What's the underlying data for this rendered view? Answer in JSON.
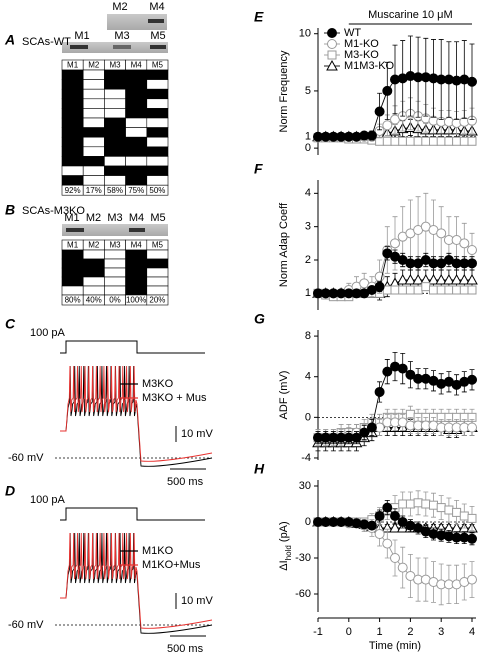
{
  "panels": {
    "A": {
      "letter": "A",
      "title": "SCAs-WT",
      "gel_top": [
        "M2",
        "M4"
      ],
      "gel_bottom": [
        "M1",
        "M3",
        "M5"
      ],
      "header": [
        "M1",
        "M2",
        "M3",
        "M4",
        "M5"
      ],
      "cells": [
        [
          1,
          0,
          1,
          1,
          1
        ],
        [
          1,
          0,
          1,
          1,
          0
        ],
        [
          1,
          0,
          0,
          1,
          1
        ],
        [
          1,
          0,
          0,
          1,
          0
        ],
        [
          1,
          0,
          0,
          1,
          1
        ],
        [
          1,
          0,
          1,
          0,
          0
        ],
        [
          1,
          1,
          1,
          0,
          1
        ],
        [
          1,
          0,
          1,
          1,
          0
        ],
        [
          1,
          0,
          1,
          1,
          1
        ],
        [
          1,
          1,
          0,
          0,
          0
        ],
        [
          0,
          0,
          1,
          1,
          1
        ],
        [
          1,
          0,
          0,
          1,
          0
        ]
      ],
      "percent": [
        "92%",
        "17%",
        "58%",
        "75%",
        "50%"
      ]
    },
    "B": {
      "letter": "B",
      "title": "SCAs-M3KO",
      "gel_labels": [
        "M1",
        "M2",
        "M3",
        "M4",
        "M5"
      ],
      "header": [
        "M1",
        "M2",
        "M3",
        "M4",
        "M5"
      ],
      "cells": [
        [
          1,
          0,
          0,
          1,
          0
        ],
        [
          1,
          1,
          0,
          1,
          1
        ],
        [
          1,
          1,
          0,
          1,
          0
        ],
        [
          1,
          0,
          0,
          1,
          0
        ],
        [
          0,
          0,
          0,
          1,
          0
        ]
      ],
      "percent": [
        "80%",
        "40%",
        "0%",
        "100%",
        "20%"
      ]
    },
    "C": {
      "letter": "C",
      "stim": "100 pA",
      "legend": [
        {
          "name": "M3KO",
          "color": "#000000"
        },
        {
          "name": "M3KO + Mus",
          "color": "#e8312f"
        }
      ],
      "vscale": "10 mV",
      "baseline": "-60 mV",
      "tscale": "500 ms"
    },
    "D": {
      "letter": "D",
      "stim": "100 pA",
      "legend": [
        {
          "name": "M1KO",
          "color": "#000000"
        },
        {
          "name": "M1KO+Mus",
          "color": "#e8312f"
        }
      ],
      "vscale": "10 mV",
      "baseline": "-60 mV",
      "tscale": "500 ms"
    }
  },
  "chart_data": [
    {
      "type": "line",
      "label": "E",
      "ylabel": "Norm Frequency",
      "annotation": {
        "text": "Muscarine 10 μM",
        "start": 0,
        "end": 4
      },
      "legend": "upper left",
      "xlim": [
        -1,
        4
      ],
      "ylim": [
        -0.6,
        10.5
      ],
      "yticks": [
        0,
        1,
        5,
        10
      ],
      "hline": 1,
      "x": [
        -1,
        -0.75,
        -0.5,
        -0.25,
        0,
        0.25,
        0.5,
        0.75,
        1,
        1.25,
        1.5,
        1.75,
        2,
        2.25,
        2.5,
        2.75,
        3,
        3.25,
        3.5,
        3.75,
        4
      ],
      "series": [
        {
          "name": "WT",
          "color": "#000000",
          "marker": "filled-circle",
          "values": [
            1,
            1,
            1,
            1,
            1,
            1,
            1.1,
            1.1,
            3.2,
            5.0,
            6.0,
            6.1,
            6.3,
            6.2,
            6.2,
            6.1,
            6.0,
            6.0,
            5.9,
            6.0,
            5.8
          ],
          "errors": [
            0.2,
            0.2,
            0.2,
            0.2,
            0.2,
            0.2,
            0.3,
            0.4,
            1.6,
            2.5,
            3.0,
            3.3,
            3.5,
            3.5,
            3.4,
            3.4,
            3.5,
            3.3,
            3.4,
            3.4,
            3.3
          ]
        },
        {
          "name": "M1-KO",
          "color": "#999999",
          "marker": "circle",
          "values": [
            1,
            1,
            1,
            1,
            1,
            1,
            1,
            1,
            1.5,
            2.0,
            2.5,
            2.8,
            3.0,
            2.8,
            2.6,
            2.4,
            2.3,
            2.3,
            2.2,
            2.3,
            2.4
          ],
          "errors": [
            0.2,
            0.2,
            0.2,
            0.2,
            0.2,
            0.2,
            0.2,
            0.3,
            0.6,
            0.9,
            1.2,
            1.3,
            1.4,
            1.3,
            1.2,
            1.1,
            1.0,
            1.0,
            1.0,
            1.0,
            1.1
          ]
        },
        {
          "name": "M3-KO",
          "color": "#999999",
          "marker": "square",
          "values": [
            0.9,
            0.9,
            0.9,
            0.9,
            0.8,
            0.8,
            0.8,
            0.7,
            0.6,
            0.6,
            0.6,
            0.6,
            0.6,
            0.6,
            0.6,
            0.6,
            0.6,
            0.6,
            0.6,
            0.6,
            0.6
          ],
          "errors": [
            0.2,
            0.2,
            0.2,
            0.2,
            0.2,
            0.2,
            0.2,
            0.2,
            0.2,
            0.2,
            0.2,
            0.2,
            0.2,
            0.2,
            0.2,
            0.2,
            0.2,
            0.2,
            0.2,
            0.2,
            0.2
          ]
        },
        {
          "name": "M1M3-KO",
          "color": "#000000",
          "marker": "triangle",
          "values": [
            1,
            1,
            1,
            1,
            1,
            1,
            1,
            1,
            1.2,
            1.3,
            1.5,
            1.7,
            1.8,
            1.7,
            1.6,
            1.6,
            1.6,
            1.6,
            1.6,
            1.5,
            1.5
          ],
          "errors": [
            0.2,
            0.2,
            0.2,
            0.2,
            0.2,
            0.2,
            0.2,
            0.2,
            0.4,
            0.5,
            0.6,
            0.7,
            0.7,
            0.7,
            0.6,
            0.6,
            0.6,
            0.6,
            0.6,
            0.6,
            0.6
          ]
        }
      ]
    },
    {
      "type": "line",
      "label": "F",
      "ylabel": "Norm Adap Coeff",
      "xlim": [
        -1,
        4
      ],
      "ylim": [
        0.5,
        4.4
      ],
      "yticks": [
        1,
        2,
        3,
        4
      ],
      "hline": 1,
      "x": [
        -1,
        -0.75,
        -0.5,
        -0.25,
        0,
        0.25,
        0.5,
        0.75,
        1,
        1.25,
        1.5,
        1.75,
        2,
        2.25,
        2.5,
        2.75,
        3,
        3.25,
        3.5,
        3.75,
        4
      ],
      "series": [
        {
          "name": "WT",
          "color": "#000000",
          "marker": "filled-circle",
          "values": [
            1,
            1,
            1,
            1,
            1,
            1,
            1,
            1.1,
            1.2,
            2.2,
            2.1,
            2.0,
            1.9,
            1.9,
            2.0,
            1.9,
            1.9,
            2.0,
            1.9,
            1.9,
            1.9
          ],
          "errors": [
            0.05,
            0.05,
            0.05,
            0.05,
            0.05,
            0.05,
            0.05,
            0.1,
            0.15,
            0.2,
            0.2,
            0.2,
            0.2,
            0.2,
            0.2,
            0.2,
            0.2,
            0.2,
            0.2,
            0.2,
            0.2
          ]
        },
        {
          "name": "M1-KO",
          "color": "#999999",
          "marker": "circle",
          "values": [
            1,
            1,
            1,
            1,
            1.1,
            1.2,
            1.3,
            1.2,
            1.5,
            2.3,
            2.5,
            2.7,
            2.8,
            2.9,
            3.0,
            2.9,
            2.8,
            2.6,
            2.6,
            2.5,
            2.3
          ],
          "errors": [
            0.05,
            0.05,
            0.05,
            0.1,
            0.2,
            0.3,
            0.3,
            0.3,
            0.5,
            0.7,
            0.8,
            0.9,
            1.0,
            1.0,
            1.0,
            0.9,
            0.8,
            0.7,
            0.7,
            0.6,
            0.5
          ]
        },
        {
          "name": "M3-KO",
          "color": "#999999",
          "marker": "square",
          "values": [
            1,
            0.95,
            0.9,
            0.9,
            0.9,
            1.0,
            1.0,
            1.0,
            1.0,
            1.1,
            1.1,
            1.1,
            1.1,
            1.1,
            1.2,
            1.1,
            1.1,
            1.1,
            1.1,
            1.1,
            1.1
          ],
          "errors": [
            0.1,
            0.1,
            0.1,
            0.1,
            0.1,
            0.1,
            0.1,
            0.1,
            0.1,
            0.1,
            0.1,
            0.1,
            0.1,
            0.1,
            0.1,
            0.1,
            0.1,
            0.1,
            0.1,
            0.1,
            0.1
          ]
        },
        {
          "name": "M1M3-KO",
          "color": "#000000",
          "marker": "triangle",
          "values": [
            1,
            1,
            1,
            1,
            1,
            1,
            1,
            1,
            1,
            1.2,
            1.3,
            1.4,
            1.4,
            1.4,
            1.4,
            1.4,
            1.4,
            1.4,
            1.4,
            1.4,
            1.4
          ],
          "errors": [
            0.1,
            0.1,
            0.1,
            0.1,
            0.1,
            0.1,
            0.1,
            0.1,
            0.2,
            0.3,
            0.3,
            0.3,
            0.3,
            0.3,
            0.3,
            0.3,
            0.3,
            0.3,
            0.3,
            0.3,
            0.3
          ]
        }
      ]
    },
    {
      "type": "line",
      "label": "G",
      "ylabel": "ADF (mV)",
      "xlim": [
        -1,
        4
      ],
      "ylim": [
        -4.2,
        8.6
      ],
      "yticks": [
        -4,
        0,
        4,
        8
      ],
      "hline": 0,
      "x": [
        -1,
        -0.75,
        -0.5,
        -0.25,
        0,
        0.25,
        0.5,
        0.75,
        1,
        1.25,
        1.5,
        1.75,
        2,
        2.25,
        2.5,
        2.75,
        3,
        3.25,
        3.5,
        3.75,
        4
      ],
      "series": [
        {
          "name": "WT",
          "color": "#000000",
          "marker": "filled-circle",
          "values": [
            -2,
            -2,
            -2,
            -2,
            -2,
            -2,
            -1.5,
            -1,
            2.5,
            4.5,
            5,
            4.8,
            4.2,
            3.8,
            3.8,
            3.6,
            3.3,
            3.5,
            3.2,
            3.5,
            3.7
          ],
          "errors": [
            0.6,
            0.6,
            0.6,
            0.6,
            0.6,
            0.6,
            0.7,
            0.8,
            1.0,
            1.2,
            1.4,
            1.5,
            1.3,
            1.0,
            1.0,
            1.0,
            1.0,
            1.0,
            1.0,
            1.0,
            1.0
          ]
        },
        {
          "name": "M1-KO",
          "color": "#999999",
          "marker": "circle",
          "values": [
            -2,
            -2,
            -2,
            -2,
            -1.8,
            -1.5,
            -1.5,
            -1,
            -1,
            -0.5,
            -0.5,
            -0.5,
            -0.8,
            -0.8,
            -0.8,
            -0.8,
            -1,
            -1,
            -1,
            -1,
            -1
          ],
          "errors": [
            0.8,
            0.8,
            0.8,
            0.8,
            0.8,
            0.8,
            0.8,
            0.8,
            0.8,
            0.8,
            0.8,
            0.8,
            0.8,
            0.8,
            0.8,
            0.8,
            0.8,
            0.8,
            0.8,
            0.8,
            0.8
          ]
        },
        {
          "name": "M3-KO",
          "color": "#999999",
          "marker": "square",
          "values": [
            -2,
            -2,
            -2,
            -1.5,
            -1.5,
            -1.5,
            -1,
            -0.5,
            -0.5,
            0,
            0,
            0,
            0.3,
            0,
            0,
            0,
            0,
            0,
            0,
            0,
            0
          ],
          "errors": [
            0.8,
            0.8,
            0.8,
            0.8,
            0.8,
            0.8,
            0.8,
            0.8,
            0.8,
            0.8,
            0.8,
            0.8,
            0.8,
            0.8,
            0.8,
            0.8,
            0.8,
            0.8,
            0.8,
            0.8,
            0.8
          ]
        },
        {
          "name": "M1M3-KO",
          "color": "#000000",
          "marker": "triangle",
          "values": [
            -2.5,
            -2.5,
            -2.5,
            -2.5,
            -2.5,
            -2.5,
            -2,
            -1.5,
            -1,
            -1,
            -1,
            -1,
            -1,
            -1,
            -1,
            -1,
            -1,
            -1.2,
            -1.2,
            -1,
            -1
          ],
          "errors": [
            0.8,
            0.8,
            0.8,
            0.8,
            0.8,
            0.8,
            0.8,
            0.8,
            0.8,
            0.8,
            0.8,
            0.8,
            0.8,
            0.8,
            0.8,
            0.8,
            0.8,
            0.8,
            0.8,
            0.8,
            0.8
          ]
        }
      ]
    },
    {
      "type": "line",
      "label": "H",
      "ylabel": [
        "ΔI",
        "hold",
        " (pA)"
      ],
      "xlabel": "Time (min)",
      "xlim": [
        -1,
        4
      ],
      "xticks": [
        -1,
        0,
        1,
        2,
        3,
        4
      ],
      "ylim": [
        -75,
        35
      ],
      "yticks": [
        30,
        0,
        -30,
        -60
      ],
      "hline": 0,
      "x": [
        -1,
        -0.75,
        -0.5,
        -0.25,
        0,
        0.25,
        0.5,
        0.75,
        1,
        1.25,
        1.5,
        1.75,
        2,
        2.25,
        2.5,
        2.75,
        3,
        3.25,
        3.5,
        3.75,
        4
      ],
      "series": [
        {
          "name": "WT",
          "color": "#000000",
          "marker": "filled-circle",
          "values": [
            0,
            0,
            0,
            0,
            0,
            -1,
            -2,
            -3,
            5,
            12,
            5,
            0,
            -3,
            -5,
            -8,
            -10,
            -11,
            -12,
            -13,
            -13,
            -14
          ],
          "errors": [
            2,
            2,
            2,
            2,
            2,
            2,
            3,
            3,
            5,
            6,
            6,
            5,
            5,
            5,
            5,
            5,
            5,
            5,
            5,
            5,
            5
          ]
        },
        {
          "name": "M1-KO",
          "color": "#999999",
          "marker": "circle",
          "values": [
            0,
            0,
            0,
            0,
            -1,
            -1,
            -3,
            -5,
            -10,
            -18,
            -30,
            -38,
            -45,
            -48,
            -48,
            -50,
            -52,
            -52,
            -52,
            -50,
            -48
          ],
          "errors": [
            2,
            2,
            2,
            2,
            3,
            3,
            5,
            7,
            10,
            12,
            15,
            17,
            18,
            18,
            18,
            17,
            17,
            16,
            16,
            15,
            15
          ]
        },
        {
          "name": "M3-KO",
          "color": "#999999",
          "marker": "square",
          "values": [
            0,
            0,
            0,
            0,
            0,
            0,
            0,
            2,
            5,
            10,
            12,
            15,
            15,
            16,
            15,
            14,
            12,
            10,
            8,
            5,
            3
          ],
          "errors": [
            2,
            2,
            2,
            2,
            2,
            2,
            3,
            5,
            7,
            8,
            10,
            10,
            10,
            10,
            10,
            10,
            10,
            10,
            10,
            10,
            10
          ]
        },
        {
          "name": "M1M3-KO",
          "color": "#000000",
          "marker": "triangle",
          "values": [
            0,
            0,
            0,
            0,
            0,
            -1,
            -2,
            -4,
            -5,
            -5,
            -5,
            -5,
            -5,
            -5,
            -5,
            -5,
            -5,
            -5,
            -5,
            -5,
            -5
          ],
          "errors": [
            3,
            3,
            3,
            3,
            3,
            3,
            3,
            3,
            3,
            3,
            3,
            3,
            3,
            3,
            3,
            3,
            3,
            3,
            3,
            3,
            3
          ]
        }
      ]
    }
  ]
}
